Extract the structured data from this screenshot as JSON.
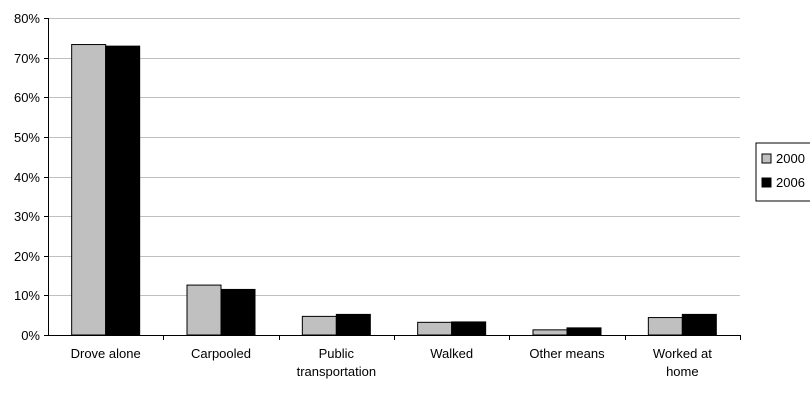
{
  "chart_data": {
    "type": "bar",
    "categories": [
      "Drove alone",
      "Carpooled",
      "Public transportation",
      "Walked",
      "Other means",
      "Worked at home"
    ],
    "category_lines": [
      [
        "Drove alone"
      ],
      [
        "Carpooled"
      ],
      [
        "Public",
        "transportation"
      ],
      [
        "Walked"
      ],
      [
        "Other means"
      ],
      [
        "Worked at",
        "home"
      ]
    ],
    "series": [
      {
        "name": "2000",
        "color": "#c0c0c0",
        "values": [
          73.3,
          12.6,
          4.7,
          3.2,
          1.3,
          4.4
        ]
      },
      {
        "name": "2006",
        "color": "#000000",
        "values": [
          72.9,
          11.5,
          5.2,
          3.3,
          1.8,
          5.2
        ]
      }
    ],
    "ylim": [
      0,
      80
    ],
    "yticks": [
      0,
      10,
      20,
      30,
      40,
      50,
      60,
      70,
      80
    ],
    "ytick_labels": [
      "0%",
      "10%",
      "20%",
      "30%",
      "40%",
      "50%",
      "60%",
      "70%",
      "80%"
    ],
    "grid": true,
    "legend_position": "right",
    "title": "",
    "xlabel": "",
    "ylabel": ""
  }
}
